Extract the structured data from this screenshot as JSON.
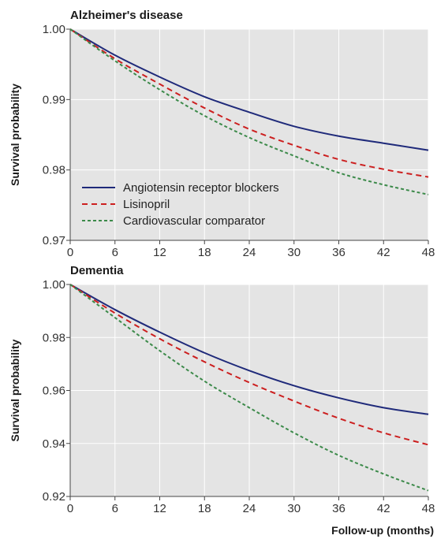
{
  "chart_data": [
    {
      "type": "line",
      "title": "Alzheimer's disease",
      "ylabel": "Survival probability",
      "xlabel": "",
      "xlim": [
        0,
        48
      ],
      "ylim": [
        0.97,
        1.0
      ],
      "x_ticks": [
        "0",
        "6",
        "12",
        "18",
        "24",
        "30",
        "36",
        "42",
        "48"
      ],
      "y_ticks": [
        "0.97",
        "0.98",
        "0.99",
        "1.00"
      ],
      "grid": true,
      "legend": "bottom-left",
      "x": [
        0,
        6,
        12,
        18,
        24,
        30,
        36,
        42,
        48
      ],
      "series": [
        {
          "name": "Angiotensin receptor blockers",
          "color": "#1f2a7a",
          "style": "solid",
          "values": [
            1.0,
            0.9963,
            0.9932,
            0.9904,
            0.9882,
            0.9862,
            0.9848,
            0.9838,
            0.9828
          ]
        },
        {
          "name": "Lisinopril",
          "color": "#cc1f1f",
          "style": "dashed",
          "values": [
            1.0,
            0.9958,
            0.9922,
            0.9888,
            0.9858,
            0.9835,
            0.9815,
            0.9801,
            0.979
          ]
        },
        {
          "name": "Cardiovascular comparator",
          "color": "#3c8a4a",
          "style": "dotted",
          "values": [
            1.0,
            0.9955,
            0.9914,
            0.9877,
            0.9846,
            0.982,
            0.9796,
            0.9779,
            0.9765
          ]
        }
      ]
    },
    {
      "type": "line",
      "title": "Dementia",
      "ylabel": "Survival probability",
      "xlabel": "Follow-up (months)",
      "xlim": [
        0,
        48
      ],
      "ylim": [
        0.92,
        1.0
      ],
      "x_ticks": [
        "0",
        "6",
        "12",
        "18",
        "24",
        "30",
        "36",
        "42",
        "48"
      ],
      "y_ticks": [
        "0.92",
        "0.94",
        "0.96",
        "0.98",
        "1.00"
      ],
      "grid": true,
      "x": [
        0,
        6,
        12,
        18,
        24,
        30,
        36,
        42,
        48
      ],
      "series": [
        {
          "name": "Angiotensin receptor blockers",
          "color": "#1f2a7a",
          "style": "solid",
          "values": [
            1.0,
            0.9905,
            0.982,
            0.9742,
            0.9675,
            0.9618,
            0.9572,
            0.9535,
            0.951
          ]
        },
        {
          "name": "Lisinopril",
          "color": "#cc1f1f",
          "style": "dashed",
          "values": [
            1.0,
            0.9892,
            0.9795,
            0.9708,
            0.963,
            0.956,
            0.9495,
            0.944,
            0.9395
          ]
        },
        {
          "name": "Cardiovascular comparator",
          "color": "#3c8a4a",
          "style": "dotted",
          "values": [
            1.0,
            0.9875,
            0.975,
            0.9635,
            0.9535,
            0.944,
            0.9355,
            0.9285,
            0.9222
          ]
        }
      ]
    }
  ]
}
